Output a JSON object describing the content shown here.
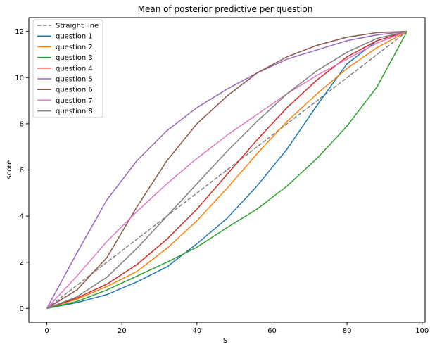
{
  "chart_data": {
    "type": "line",
    "title": "Mean of posterior predictive per question",
    "xlabel": "S",
    "ylabel": "score",
    "xlim": [
      -4.8,
      100.8
    ],
    "ylim": [
      -0.6,
      12.6
    ],
    "x_ticks": [
      0,
      20,
      40,
      60,
      80,
      100
    ],
    "y_ticks": [
      0,
      2,
      4,
      6,
      8,
      10,
      12
    ],
    "grid": false,
    "legend_position": "upper-left",
    "x": [
      0,
      8,
      16,
      24,
      32,
      40,
      48,
      56,
      64,
      72,
      80,
      88,
      96
    ],
    "series": [
      {
        "name": "Straight line",
        "color": "#7f7f7f",
        "dash": true,
        "values": [
          0,
          1,
          2,
          3,
          4,
          5,
          6,
          7,
          8,
          9,
          10,
          11,
          12
        ]
      },
      {
        "name": "question 1",
        "color": "#1f77b4",
        "dash": false,
        "values": [
          0,
          0.25,
          0.6,
          1.15,
          1.8,
          2.8,
          3.9,
          5.3,
          6.9,
          8.8,
          10.6,
          11.6,
          12
        ]
      },
      {
        "name": "question 2",
        "color": "#ff7f0e",
        "dash": false,
        "values": [
          0,
          0.4,
          0.95,
          1.6,
          2.6,
          3.8,
          5.2,
          6.7,
          8.1,
          9.3,
          10.4,
          11.3,
          12
        ]
      },
      {
        "name": "question 3",
        "color": "#2ca02c",
        "dash": false,
        "values": [
          0,
          0.3,
          0.8,
          1.4,
          2.0,
          2.65,
          3.5,
          4.3,
          5.3,
          6.5,
          7.9,
          9.6,
          12
        ]
      },
      {
        "name": "question 4",
        "color": "#d62728",
        "dash": false,
        "values": [
          0,
          0.45,
          1.05,
          1.9,
          3.0,
          4.3,
          5.8,
          7.3,
          8.7,
          9.9,
          10.9,
          11.6,
          12
        ]
      },
      {
        "name": "question 5",
        "color": "#9467bd",
        "dash": false,
        "values": [
          0,
          2.4,
          4.7,
          6.4,
          7.7,
          8.7,
          9.5,
          10.2,
          10.8,
          11.2,
          11.6,
          11.85,
          12
        ]
      },
      {
        "name": "question 6",
        "color": "#8c564b",
        "dash": false,
        "values": [
          0,
          0.8,
          2.2,
          4.4,
          6.4,
          8.0,
          9.2,
          10.2,
          10.9,
          11.4,
          11.75,
          11.95,
          12
        ]
      },
      {
        "name": "question 7",
        "color": "#e377c2",
        "dash": false,
        "values": [
          0,
          1.4,
          2.9,
          4.2,
          5.4,
          6.5,
          7.5,
          8.4,
          9.3,
          10.1,
          10.8,
          11.5,
          12
        ]
      },
      {
        "name": "question 8",
        "color": "#7f7f7f",
        "dash": false,
        "values": [
          0,
          0.5,
          1.35,
          2.6,
          4.0,
          5.4,
          6.8,
          8.1,
          9.3,
          10.3,
          11.1,
          11.7,
          12
        ]
      }
    ]
  }
}
